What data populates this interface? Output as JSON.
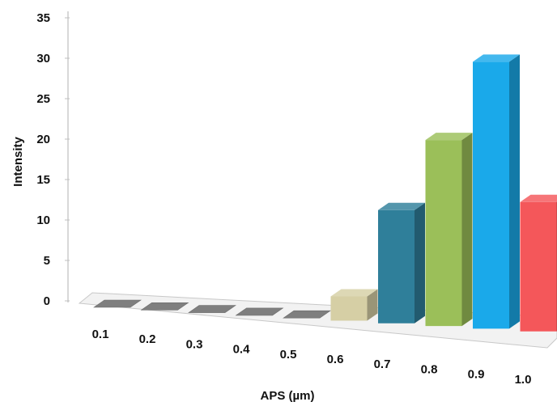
{
  "chart_data": {
    "type": "bar",
    "xlabel": "APS (µm)",
    "ylabel": "Intensity",
    "ylim": [
      0,
      35
    ],
    "yticks": [
      "0",
      "5",
      "10",
      "15",
      "20",
      "25",
      "30",
      "35"
    ],
    "categories": [
      "0.1",
      "0.2",
      "0.3",
      "0.4",
      "0.5",
      "0.6",
      "0.7",
      "0.8",
      "0.9",
      "1.0"
    ],
    "values": [
      0,
      0,
      0,
      0,
      0,
      3,
      14,
      23,
      33,
      16
    ],
    "colors": [
      "#7f7f7f",
      "#7f7f7f",
      "#7f7f7f",
      "#7f7f7f",
      "#7f7f7f",
      "#d6cfa5",
      "#2f7f9a",
      "#9bbf59",
      "#1aa9ea",
      "#f4575a"
    ],
    "grid": false,
    "legend": "none",
    "style": "3d-column"
  }
}
